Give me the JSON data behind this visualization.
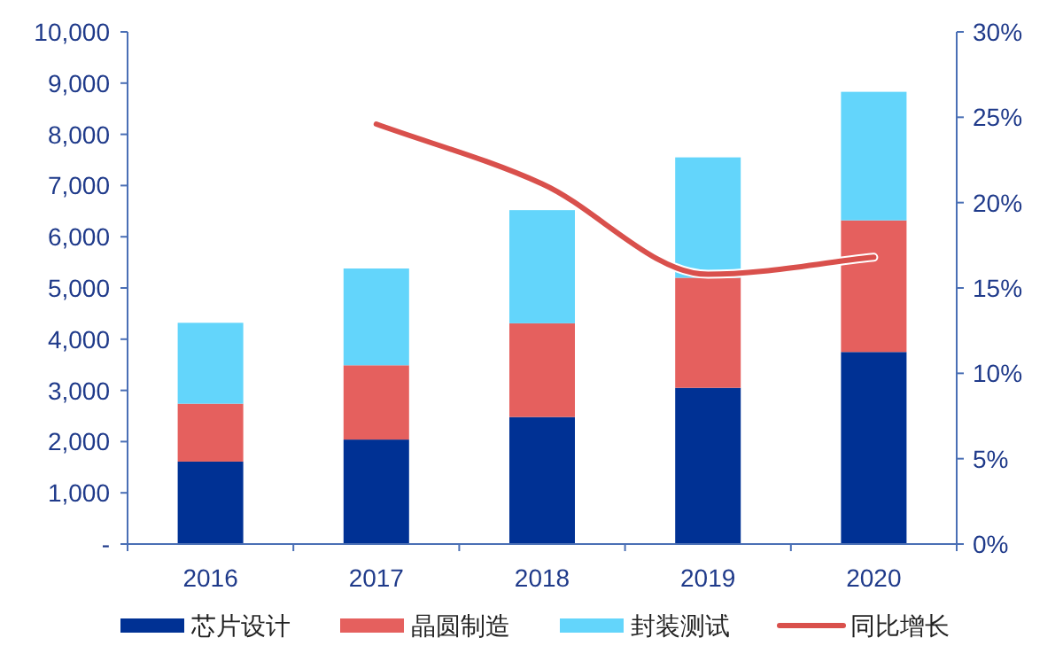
{
  "chart_data": {
    "type": "bar",
    "stacked": true,
    "categories": [
      "2016",
      "2017",
      "2018",
      "2019",
      "2020"
    ],
    "series": [
      {
        "name": "芯片设计",
        "color": "#003194",
        "values": [
          1610,
          2040,
          2480,
          3050,
          3750
        ]
      },
      {
        "name": "晶圆制造",
        "color": "#e5605e",
        "values": [
          1130,
          1450,
          1830,
          2150,
          2570
        ]
      },
      {
        "name": "封装测试",
        "color": "#63d5fb",
        "values": [
          1580,
          1890,
          2210,
          2350,
          2510
        ]
      },
      {
        "name": "同比增长",
        "type": "line",
        "axis": "y2",
        "color": "#d9504c",
        "values": [
          null,
          24.6,
          21.1,
          15.8,
          16.8
        ]
      }
    ],
    "ylim": [
      0,
      10000
    ],
    "yticks": [
      {
        "value": 0,
        "label": "-"
      },
      {
        "value": 1000,
        "label": "1,000"
      },
      {
        "value": 2000,
        "label": "2,000"
      },
      {
        "value": 3000,
        "label": "3,000"
      },
      {
        "value": 4000,
        "label": "4,000"
      },
      {
        "value": 5000,
        "label": "5,000"
      },
      {
        "value": 6000,
        "label": "6,000"
      },
      {
        "value": 7000,
        "label": "7,000"
      },
      {
        "value": 8000,
        "label": "8,000"
      },
      {
        "value": 9000,
        "label": "9,000"
      },
      {
        "value": 10000,
        "label": "10,000"
      }
    ],
    "y2lim": [
      0,
      30
    ],
    "y2ticks": [
      {
        "value": 0,
        "label": "0%"
      },
      {
        "value": 5,
        "label": "5%"
      },
      {
        "value": 10,
        "label": "10%"
      },
      {
        "value": 15,
        "label": "15%"
      },
      {
        "value": 20,
        "label": "20%"
      },
      {
        "value": 25,
        "label": "25%"
      },
      {
        "value": 30,
        "label": "30%"
      }
    ],
    "grid": false,
    "legend": "bottom",
    "marker": "none",
    "line_style": "solid"
  }
}
